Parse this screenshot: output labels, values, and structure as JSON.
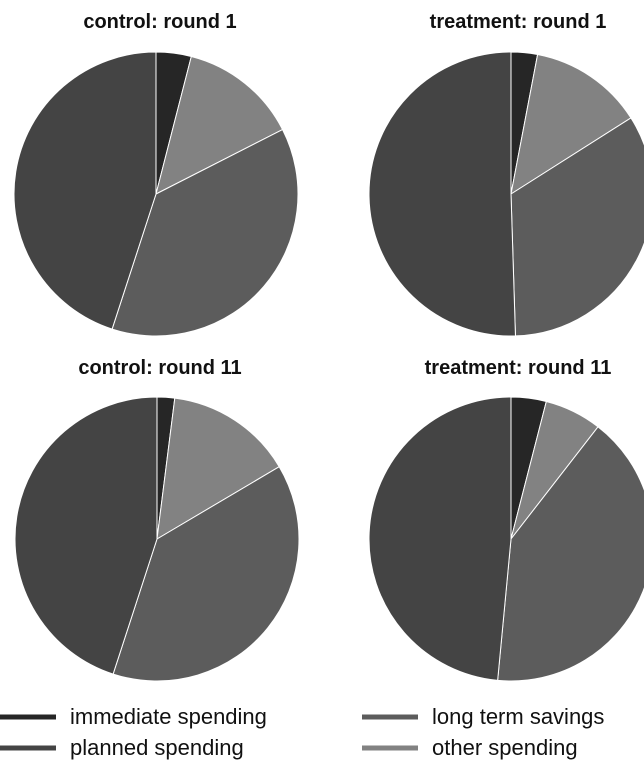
{
  "chart_data": [
    {
      "type": "pie",
      "title": "control: round 1",
      "categories": [
        "immediate spending",
        "other spending",
        "long term savings",
        "planned spending"
      ],
      "values": [
        4.0,
        13.5,
        37.5,
        45.0
      ]
    },
    {
      "type": "pie",
      "title": "treatment: round 1",
      "categories": [
        "immediate spending",
        "other spending",
        "long term savings",
        "planned spending"
      ],
      "values": [
        3.0,
        13.0,
        33.5,
        50.5
      ]
    },
    {
      "type": "pie",
      "title": "control: round 11",
      "categories": [
        "immediate spending",
        "other spending",
        "long term savings",
        "planned spending"
      ],
      "values": [
        2.0,
        14.5,
        38.5,
        45.0
      ]
    },
    {
      "type": "pie",
      "title": "treatment: round 11",
      "categories": [
        "immediate spending",
        "other spending",
        "long term savings",
        "planned spending"
      ],
      "values": [
        4.0,
        6.5,
        41.0,
        48.5
      ]
    }
  ],
  "legend": [
    {
      "label": "immediate spending",
      "key": "immediate spending"
    },
    {
      "label": "planned spending",
      "key": "planned spending"
    },
    {
      "label": "long term savings",
      "key": "long term savings"
    },
    {
      "label": "other spending",
      "key": "other spending"
    }
  ],
  "colors": {
    "immediate spending": "#262626",
    "planned spending": "#444444",
    "long term savings": "#5c5c5c",
    "other spending": "#828282",
    "slice_edge": "#ffffff"
  }
}
